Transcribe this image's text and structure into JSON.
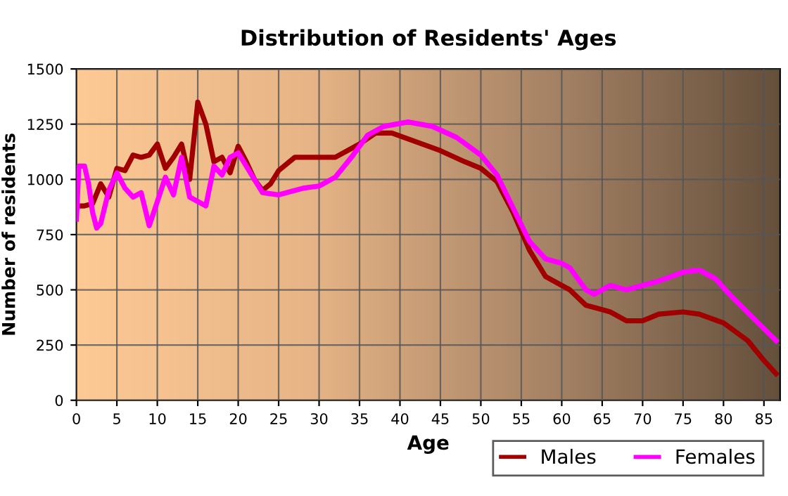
{
  "chart_data": {
    "type": "line",
    "title": "Distribution of Residents' Ages",
    "xlabel": "Age",
    "ylabel": "Number of residents",
    "xlim": [
      0,
      87
    ],
    "xticks": [
      0,
      5,
      10,
      15,
      20,
      25,
      30,
      35,
      40,
      45,
      50,
      55,
      60,
      65,
      70,
      75,
      80,
      85
    ],
    "ylim": [
      0,
      1500
    ],
    "yticks": [
      0,
      250,
      500,
      750,
      1000,
      1250,
      1500
    ],
    "grid": true,
    "legend": "bottom right",
    "marker": "none",
    "line_style": "solid",
    "series": [
      {
        "name": "Males",
        "color": "#a00000",
        "x": [
          0,
          1,
          2,
          3,
          4,
          5,
          6,
          7,
          8,
          9,
          10,
          11,
          12,
          13,
          14,
          15,
          16,
          17,
          18,
          19,
          20,
          21,
          22,
          23,
          24,
          25,
          27,
          30,
          32,
          35,
          37,
          39,
          42,
          45,
          48,
          50,
          52,
          54,
          56,
          58,
          60,
          61,
          63,
          65,
          66,
          68,
          70,
          72,
          75,
          77,
          80,
          83,
          85,
          86.5
        ],
        "values": [
          880,
          880,
          890,
          980,
          920,
          1050,
          1040,
          1110,
          1100,
          1110,
          1160,
          1050,
          1100,
          1160,
          1000,
          1350,
          1250,
          1080,
          1100,
          1030,
          1150,
          1080,
          1000,
          950,
          980,
          1040,
          1100,
          1100,
          1100,
          1160,
          1210,
          1210,
          1170,
          1130,
          1080,
          1050,
          990,
          850,
          680,
          560,
          520,
          500,
          430,
          410,
          400,
          360,
          360,
          390,
          400,
          390,
          350,
          270,
          180,
          120
        ]
      },
      {
        "name": "Females",
        "color": "#ff00ff",
        "x": [
          0,
          0.3,
          1,
          1.5,
          2,
          2.5,
          3,
          4,
          5,
          6,
          7,
          8,
          9,
          10,
          11,
          12,
          13,
          14,
          15,
          16,
          17,
          18,
          19,
          20,
          22,
          23,
          25,
          28,
          30,
          32,
          34,
          36,
          38,
          41,
          44,
          47,
          50,
          52,
          54,
          56,
          58,
          60,
          61,
          63,
          64,
          66,
          68,
          70,
          72,
          75,
          77,
          79,
          81,
          84,
          86.5
        ],
        "values": [
          820,
          1060,
          1060,
          980,
          850,
          780,
          800,
          950,
          1030,
          960,
          920,
          940,
          790,
          900,
          1010,
          930,
          1100,
          920,
          900,
          880,
          1060,
          1020,
          1100,
          1120,
          1000,
          940,
          930,
          960,
          970,
          1010,
          1100,
          1200,
          1240,
          1260,
          1240,
          1190,
          1110,
          1020,
          870,
          720,
          640,
          620,
          600,
          500,
          480,
          520,
          500,
          520,
          540,
          580,
          590,
          550,
          470,
          360,
          270
        ]
      }
    ]
  }
}
